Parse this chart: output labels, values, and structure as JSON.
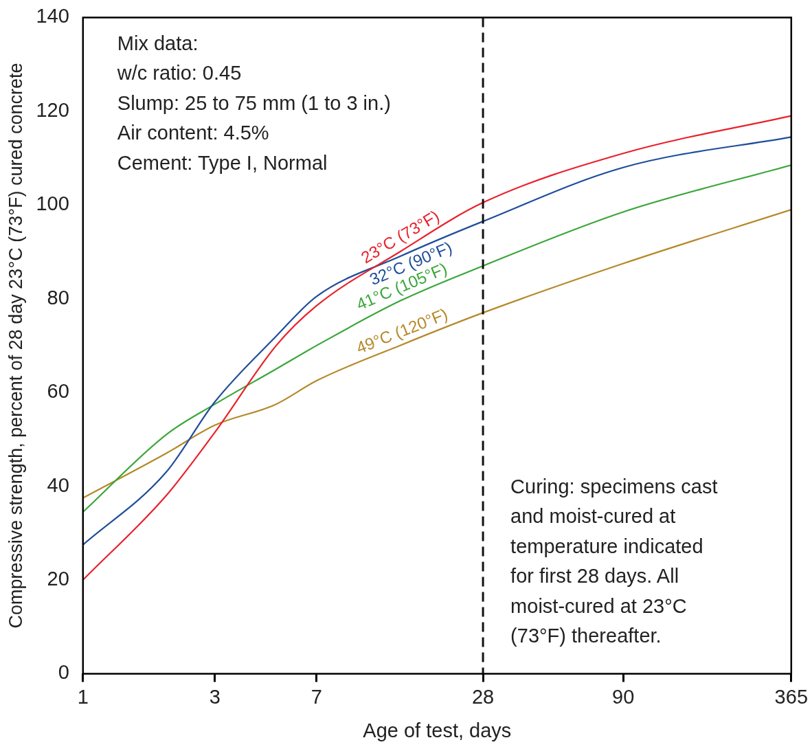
{
  "chart_data": {
    "type": "line",
    "xlabel": "Age of test, days",
    "ylabel": "Compressive strength, percent of 28 day 23°C (73°F) cured concrete",
    "log": "x",
    "xlim": [
      1,
      365
    ],
    "xticks": [
      1,
      3,
      7,
      28,
      90,
      365
    ],
    "ylim": [
      0,
      140
    ],
    "yticks": [
      0,
      20,
      40,
      60,
      80,
      100,
      120,
      140
    ],
    "grid": false,
    "legend": false,
    "marker": "none",
    "line_style": "solid",
    "x": [
      1,
      2,
      3,
      5,
      7,
      14,
      28,
      90,
      365
    ],
    "series": [
      {
        "name": "23°C (73°F)",
        "color": "#e8222b",
        "values": [
          20,
          38,
          51.5,
          70,
          78.5,
          90,
          100.5,
          111,
          119
        ]
      },
      {
        "name": "32°C (90°F)",
        "color": "#1f4e9a",
        "values": [
          27.5,
          43,
          58,
          72,
          80.5,
          89,
          96.5,
          108,
          114.5
        ]
      },
      {
        "name": "41°C (105°F)",
        "color": "#3aa63a",
        "values": [
          34.5,
          51,
          57.5,
          65,
          70,
          79.5,
          87,
          98.5,
          108.5
        ]
      },
      {
        "name": "49°C (120°F)",
        "color": "#b5892a",
        "values": [
          37.5,
          47,
          53,
          57.5,
          62.5,
          70,
          77,
          87.5,
          99
        ]
      }
    ],
    "ref_lines": [
      {
        "axis": "x",
        "value": 28,
        "line_style": "dashed",
        "color": "#111111"
      }
    ],
    "annotations": [
      "Mix data:\nw/c ratio: 0.45\nSlump: 25 to 75 mm (1 to 3 in.)\nAir content: 4.5%\nCement: Type I, Normal",
      "Curing: specimens cast\nand moist-cured at\ntemperature indicated\nfor first 28 days. All\nmoist-cured at 23°C\n(73°F) thereafter."
    ]
  }
}
